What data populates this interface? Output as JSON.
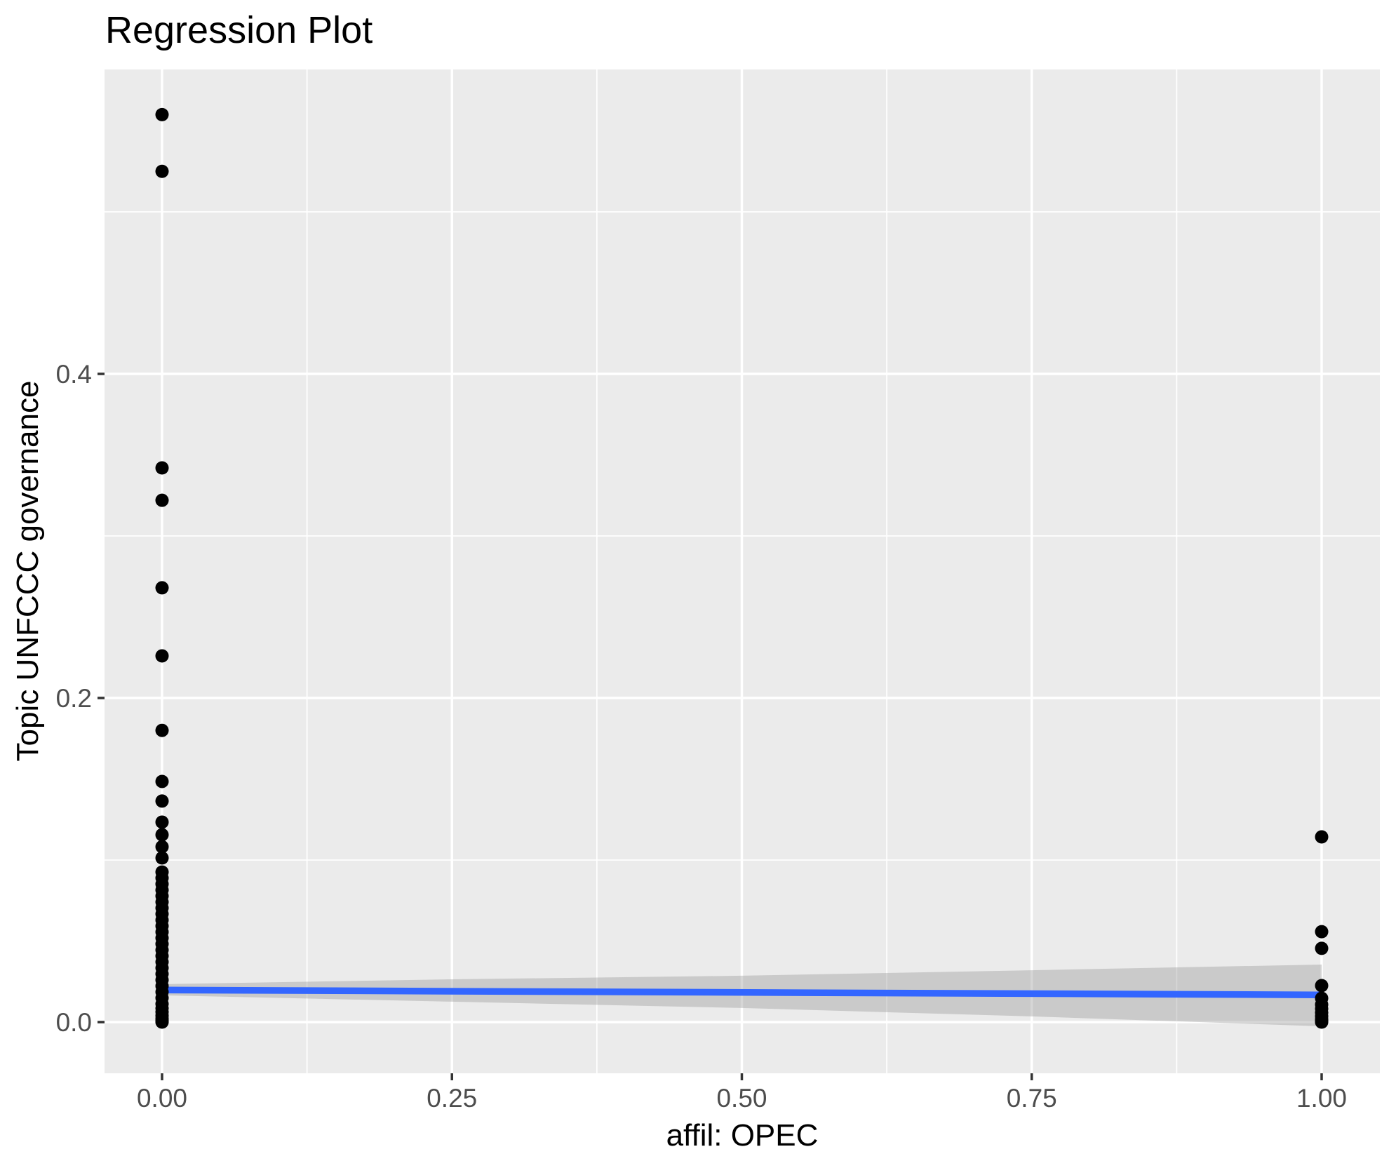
{
  "chart_data": {
    "type": "scatter",
    "title": "Regression Plot",
    "xlabel": "affil: OPEC",
    "ylabel": "Topic UNFCCC governance",
    "x_axis": {
      "range": [
        -0.05,
        1.05
      ],
      "major_ticks": [
        0.0,
        0.25,
        0.5,
        0.75,
        1.0
      ],
      "tick_labels": [
        "0.00",
        "0.25",
        "0.50",
        "0.75",
        "1.00"
      ],
      "minor_ticks": [
        0.125,
        0.375,
        0.625,
        0.875
      ]
    },
    "y_axis": {
      "range": [
        -0.0316,
        0.5879
      ],
      "major_ticks": [
        0.0,
        0.2,
        0.4
      ],
      "tick_labels": [
        "0.0",
        "0.2",
        "0.4"
      ],
      "minor_ticks": [
        0.1,
        0.3,
        0.5
      ]
    },
    "grid": "on",
    "legend": "none",
    "series": [
      {
        "name": "points_x0",
        "x_value": 0,
        "y_values": [
          0.56,
          0.525,
          0.342,
          0.322,
          0.268,
          0.226,
          0.18,
          0.1485,
          0.1364,
          0.1234,
          0.1156,
          0.1082,
          0.1013,
          0.0926,
          0.0889,
          0.0852,
          0.0815,
          0.0778,
          0.0741,
          0.0704,
          0.0667,
          0.063,
          0.0593,
          0.0556,
          0.0519,
          0.0482,
          0.0445,
          0.0408,
          0.0371,
          0.0334,
          0.0297,
          0.026,
          0.0223,
          0.0186,
          0.0149,
          0.0112,
          0.0085,
          0.0062,
          0.004,
          0.0022,
          0.001,
          0.0004,
          0.0
        ]
      },
      {
        "name": "points_x1",
        "x_value": 1,
        "y_values": [
          0.1143,
          0.0558,
          0.0455,
          0.0225,
          0.0147,
          0.0108,
          0.0082,
          0.0058,
          0.0036,
          0.0018,
          0.0008,
          0.0
        ]
      }
    ],
    "regression_line": {
      "x": [
        0,
        1
      ],
      "y": [
        0.0198,
        0.0168
      ]
    },
    "confidence_band": [
      {
        "x": 0.0,
        "upper": 0.0234,
        "lower": 0.0165
      },
      {
        "x": 0.25,
        "upper": 0.0264,
        "lower": 0.0126
      },
      {
        "x": 0.5,
        "upper": 0.0286,
        "lower": 0.0087
      },
      {
        "x": 0.75,
        "upper": 0.032,
        "lower": 0.0035
      },
      {
        "x": 1.0,
        "upper": 0.0355,
        "lower": -0.0026
      }
    ],
    "colors": {
      "panel_background": "#EBEBEB",
      "gridline": "#FFFFFF",
      "point": "#000000",
      "regression_line": "#3366FF",
      "confidence_band": "#999999",
      "confidence_band_opacity": 0.4,
      "tick_mark": "#333333",
      "tick_label": "#4D4D4D",
      "title_text": "#000000"
    }
  }
}
